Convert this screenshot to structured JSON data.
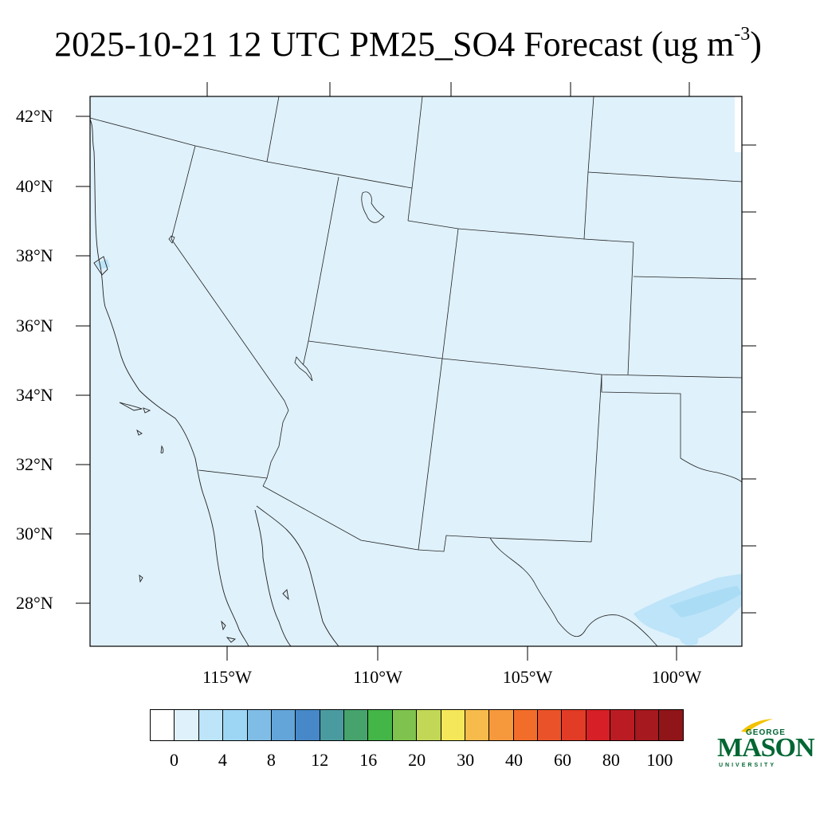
{
  "title": {
    "main": "2025-10-21 12 UTC PM25_SO4 Forecast (ug m",
    "superscript": "-3",
    "close": ")"
  },
  "map": {
    "background_fill": "#dff1fb",
    "light_blue_patch": "#bde4f8",
    "lat_labels": [
      "42°N",
      "40°N",
      "38°N",
      "36°N",
      "34°N",
      "32°N",
      "30°N",
      "28°N"
    ],
    "lon_labels": [
      "115°W",
      "110°W",
      "105°W",
      "100°W"
    ]
  },
  "colorbar": {
    "colors": [
      "#ffffff",
      "#dff1fb",
      "#bde4f8",
      "#9dd6f4",
      "#7fbde6",
      "#64a5d9",
      "#4688c8",
      "#4a9ba0",
      "#46a36c",
      "#44b547",
      "#7fc24e",
      "#c2d756",
      "#f5e75a",
      "#f7bb4c",
      "#f6993d",
      "#f36d2a",
      "#ea5329",
      "#e23b26",
      "#d61f26",
      "#bb1c23",
      "#a5191f",
      "#8f1519"
    ],
    "labels": [
      "0",
      "4",
      "8",
      "12",
      "16",
      "20",
      "30",
      "40",
      "60",
      "80",
      "100"
    ]
  },
  "logo": {
    "line1": "GEORGE",
    "line2": "MASON",
    "line3": "UNIVERSITY",
    "color": "#006633",
    "accent": "#f2c200"
  }
}
